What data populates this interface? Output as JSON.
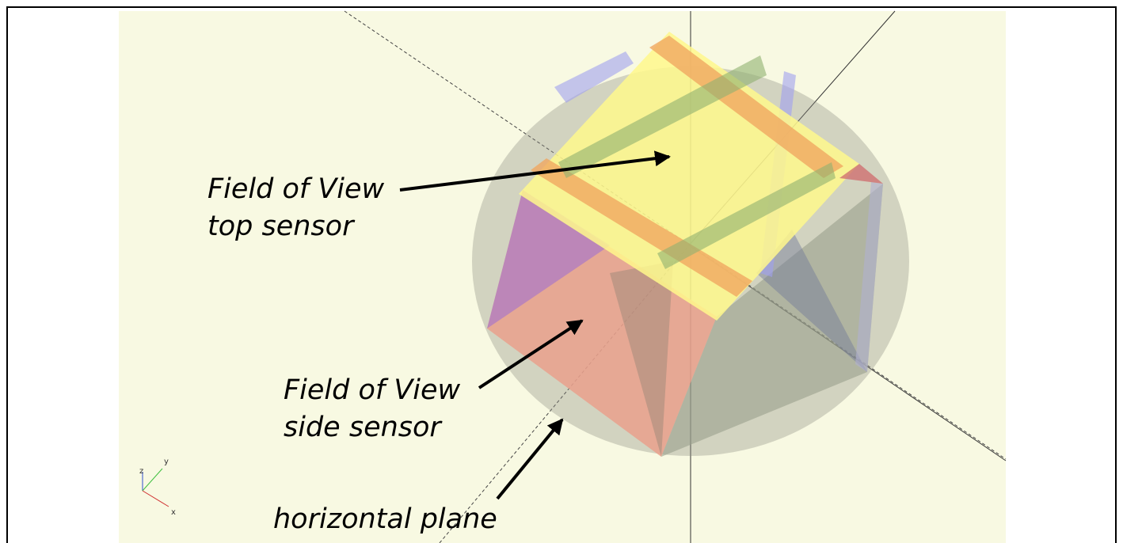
{
  "annotations": [
    {
      "lines": [
        "Field of View",
        "top sensor"
      ]
    },
    {
      "lines": [
        "Field of View",
        "side sensor"
      ]
    },
    {
      "lines": [
        "horizontal plane"
      ]
    }
  ],
  "axes": {
    "x": "x",
    "y": "y",
    "z": "z"
  }
}
